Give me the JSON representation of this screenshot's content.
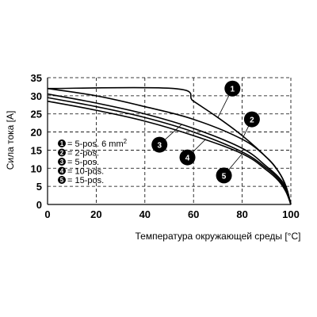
{
  "chart_data": {
    "type": "line",
    "xlabel": "Температура окружающей среды [°C]",
    "ylabel": "Сила тока [A]",
    "xlim": [
      0,
      100
    ],
    "ylim": [
      0,
      35
    ],
    "xticks": [
      0,
      20,
      40,
      60,
      80,
      100
    ],
    "yticks": [
      0,
      5,
      10,
      15,
      20,
      25,
      30,
      35
    ],
    "grid": true,
    "legend_position": "bottom-left-inside",
    "series": [
      {
        "id": "1",
        "name": "5-pos. 6 mm²",
        "x": [
          0,
          52,
          60,
          70,
          80,
          90,
          95,
          98,
          100
        ],
        "y": [
          32,
          32,
          28.5,
          24,
          19,
          13,
          9,
          5,
          0
        ]
      },
      {
        "id": "2",
        "name": "2-pos.",
        "x": [
          0,
          20,
          40,
          60,
          80,
          90,
          95,
          98,
          100
        ],
        "y": [
          32,
          30,
          27,
          23.5,
          18,
          13,
          9,
          5,
          0
        ]
      },
      {
        "id": "3",
        "name": "5-pos.",
        "x": [
          0,
          20,
          40,
          60,
          80,
          90,
          95,
          98,
          100
        ],
        "y": [
          30.5,
          28,
          25,
          21,
          15.5,
          10.5,
          7.5,
          4.5,
          0
        ]
      },
      {
        "id": "4",
        "name": "10-pos.",
        "x": [
          0,
          20,
          40,
          60,
          80,
          90,
          95,
          98,
          100
        ],
        "y": [
          29.5,
          27,
          24,
          20,
          14.5,
          10,
          7,
          4,
          0
        ]
      },
      {
        "id": "5",
        "name": "15-pos.",
        "x": [
          0,
          20,
          40,
          60,
          80,
          90,
          95,
          98,
          100
        ],
        "y": [
          28.5,
          26,
          23,
          19,
          14,
          9.5,
          6.5,
          3.5,
          0
        ]
      }
    ],
    "legend": [
      {
        "id": "1",
        "label": "= 5-pos. 6 mm",
        "sup": "2"
      },
      {
        "id": "2",
        "label": "= 2-pos.",
        "sup": ""
      },
      {
        "id": "3",
        "label": "= 5-pos.",
        "sup": ""
      },
      {
        "id": "4",
        "label": "= 10-pos.",
        "sup": ""
      },
      {
        "id": "5",
        "label": "= 15-pos.",
        "sup": ""
      }
    ],
    "callouts": [
      {
        "id": "1",
        "x": 76,
        "y": 32
      },
      {
        "id": "2",
        "x": 84,
        "y": 23.5
      },
      {
        "id": "3",
        "x": 46,
        "y": 16.5
      },
      {
        "id": "4",
        "x": 57.5,
        "y": 13
      },
      {
        "id": "5",
        "x": 72.5,
        "y": 8
      }
    ],
    "callout_targets": [
      {
        "id": "1",
        "x": 70,
        "y": 24
      },
      {
        "id": "2",
        "x": 80,
        "y": 18
      },
      {
        "id": "3",
        "x": 55,
        "y": 22
      },
      {
        "id": "4",
        "x": 65,
        "y": 18
      },
      {
        "id": "5",
        "x": 80,
        "y": 14
      }
    ]
  }
}
